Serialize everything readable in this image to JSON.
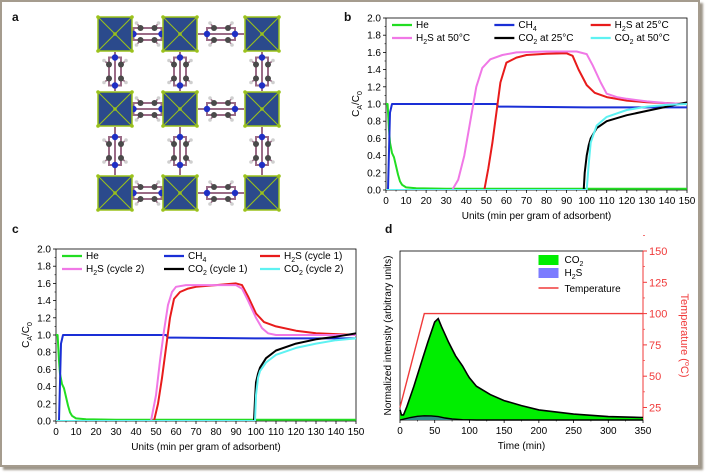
{
  "panel_letters": {
    "a": "a",
    "b": "b",
    "c": "c",
    "d": "d"
  },
  "panel_a": {
    "description": "Crystal structure: metal octahedra (blue with yellow-green vertices) linked by pyrazine rings in a square grid",
    "colors": {
      "octahedron": "#2b4a8c",
      "vertex": "#9bc21a",
      "nitrogen": "#1f2fc4",
      "carbon": "#4a4a4a",
      "hydrogen": "#cfcfcf",
      "bond": "#9a6b86"
    }
  },
  "chart_data": [
    {
      "id": "b",
      "type": "line",
      "xlabel": "Units (min per gram of adsorbent)",
      "ylabel": "CA/C0",
      "ylabel_main": "C",
      "ylabel_sub1": "A",
      "ylabel_mid": "/C",
      "ylabel_sub2": "0",
      "xlim": [
        0,
        150
      ],
      "ylim": [
        0,
        2.0
      ],
      "xticks": [
        "0",
        "10",
        "20",
        "30",
        "40",
        "50",
        "60",
        "70",
        "80",
        "90",
        "100",
        "110",
        "120",
        "130",
        "140",
        "150"
      ],
      "yticks": [
        "0.0",
        "0.2",
        "0.4",
        "0.6",
        "0.8",
        "1.0",
        "1.2",
        "1.4",
        "1.6",
        "1.8",
        "2.0"
      ],
      "legend": "top",
      "series": [
        {
          "name": "He",
          "label_main": "He",
          "label_sub": "",
          "label_rest": "",
          "color": "#22dd22",
          "x": [
            0,
            0.8,
            1.5,
            2,
            3,
            4,
            5,
            6,
            7,
            8,
            10,
            15,
            30,
            60,
            100,
            150
          ],
          "y": [
            1.0,
            1.0,
            0.7,
            0.55,
            0.43,
            0.38,
            0.28,
            0.18,
            0.1,
            0.06,
            0.03,
            0.02,
            0.015,
            0.015,
            0.015,
            0.015
          ]
        },
        {
          "name": "CH4",
          "label_main": "CH",
          "label_sub": "4",
          "label_rest": "",
          "color": "#1a2fd6",
          "x": [
            0,
            1,
            2,
            3,
            4,
            10,
            30,
            55,
            56,
            60,
            100,
            150
          ],
          "y": [
            0,
            0,
            0.9,
            1.0,
            1.0,
            1.0,
            1.0,
            1.0,
            0.97,
            0.97,
            0.96,
            0.96
          ]
        },
        {
          "name": "H2S at 25°C",
          "label_main": "H",
          "label_sub": "2",
          "label_rest": "S at 25°C",
          "color": "#e81b1b",
          "x": [
            0,
            49,
            51,
            53,
            55,
            57,
            60,
            65,
            70,
            80,
            90,
            93,
            96,
            100,
            104,
            110,
            120,
            130,
            140,
            150
          ],
          "y": [
            0,
            0,
            0.25,
            0.55,
            0.9,
            1.25,
            1.48,
            1.54,
            1.57,
            1.585,
            1.59,
            1.56,
            1.4,
            1.22,
            1.13,
            1.08,
            1.04,
            1.02,
            1.01,
            1.0
          ]
        },
        {
          "name": "H2S at 50°C",
          "label_main": "H",
          "label_sub": "2",
          "label_rest": "S at 50°C",
          "color": "#f078e6",
          "x": [
            0,
            33,
            36,
            39,
            42,
            45,
            48,
            52,
            58,
            65,
            80,
            95,
            100,
            103,
            107,
            110,
            115,
            120,
            130,
            140,
            150
          ],
          "y": [
            0,
            0,
            0.12,
            0.4,
            0.8,
            1.2,
            1.42,
            1.52,
            1.57,
            1.6,
            1.61,
            1.61,
            1.58,
            1.45,
            1.25,
            1.12,
            1.08,
            1.06,
            1.03,
            1.01,
            1.0
          ]
        },
        {
          "name": "CO2 at 25°C",
          "label_main": "CO",
          "label_sub": "2",
          "label_rest": " at 25°C",
          "color": "#000000",
          "x": [
            0,
            98.5,
            99,
            100,
            101,
            102,
            105,
            110,
            120,
            130,
            140,
            150
          ],
          "y": [
            0,
            0,
            0.2,
            0.4,
            0.52,
            0.6,
            0.72,
            0.8,
            0.87,
            0.92,
            0.97,
            1.02
          ]
        },
        {
          "name": "CO2 at 50°C",
          "label_main": "CO",
          "label_sub": "2",
          "label_rest": " at 50°C",
          "color": "#5ef2f2",
          "x": [
            0,
            100,
            101,
            102,
            103,
            105,
            110,
            120,
            130,
            140,
            150
          ],
          "y": [
            0,
            0,
            0.3,
            0.55,
            0.62,
            0.75,
            0.85,
            0.93,
            0.97,
            0.99,
            1.0
          ]
        }
      ]
    },
    {
      "id": "c",
      "type": "line",
      "xlabel": "Units (min per gram of adsorbent)",
      "ylabel": "CA/C0",
      "ylabel_main": "C",
      "ylabel_sub1": "A",
      "ylabel_mid": "/C",
      "ylabel_sub2": "0",
      "xlim": [
        0,
        150
      ],
      "ylim": [
        0,
        2.0
      ],
      "xticks": [
        "0",
        "10",
        "20",
        "30",
        "40",
        "50",
        "60",
        "70",
        "80",
        "90",
        "100",
        "110",
        "120",
        "130",
        "140",
        "150"
      ],
      "yticks": [
        "0.0",
        "0.2",
        "0.4",
        "0.6",
        "0.8",
        "1.0",
        "1.2",
        "1.4",
        "1.6",
        "1.8",
        "2.0"
      ],
      "legend": "top",
      "series": [
        {
          "name": "He",
          "label_main": "He",
          "label_sub": "",
          "label_rest": "",
          "color": "#22dd22",
          "x": [
            0,
            0.8,
            1.5,
            2,
            3,
            4,
            5,
            6,
            7,
            8,
            10,
            15,
            30,
            60,
            100,
            150
          ],
          "y": [
            1.0,
            1.0,
            0.7,
            0.55,
            0.43,
            0.38,
            0.28,
            0.18,
            0.1,
            0.06,
            0.03,
            0.02,
            0.015,
            0.015,
            0.015,
            0.015
          ]
        },
        {
          "name": "CH4",
          "label_main": "CH",
          "label_sub": "4",
          "label_rest": "",
          "color": "#1a2fd6",
          "x": [
            0,
            1.5,
            2.5,
            3.5,
            10,
            30,
            55,
            56,
            60,
            100,
            150
          ],
          "y": [
            0,
            0,
            0.9,
            1.0,
            1.0,
            1.0,
            1.0,
            0.97,
            0.97,
            0.96,
            0.96
          ]
        },
        {
          "name": "H2S (cycle 1)",
          "label_main": "H",
          "label_sub": "2",
          "label_rest": "S (cycle 1)",
          "color": "#e81b1b",
          "x": [
            0,
            49,
            51,
            53,
            55,
            57,
            59,
            62,
            66,
            70,
            80,
            90,
            93,
            96,
            100,
            104,
            110,
            120,
            130,
            140,
            150
          ],
          "y": [
            0,
            0,
            0.2,
            0.5,
            0.85,
            1.2,
            1.42,
            1.5,
            1.54,
            1.56,
            1.58,
            1.6,
            1.58,
            1.45,
            1.25,
            1.15,
            1.1,
            1.05,
            1.02,
            1.01,
            1.0
          ]
        },
        {
          "name": "H2S (cycle 2)",
          "label_main": "H",
          "label_sub": "2",
          "label_rest": "S (cycle 2)",
          "color": "#f078e6",
          "x": [
            0,
            47.5,
            50,
            52,
            54,
            56,
            58,
            60,
            65,
            80,
            90,
            93,
            96,
            100,
            103,
            106,
            110,
            120,
            130,
            140,
            150
          ],
          "y": [
            0,
            0,
            0.3,
            0.7,
            1.05,
            1.35,
            1.5,
            1.56,
            1.58,
            1.58,
            1.58,
            1.54,
            1.4,
            1.2,
            1.08,
            1.02,
            1.0,
            1.0,
            1.0,
            1.0,
            1.0
          ]
        },
        {
          "name": "CO2 (cycle 1)",
          "label_main": "CO",
          "label_sub": "2",
          "label_rest": " (cycle 1)",
          "color": "#000000",
          "x": [
            0,
            99,
            99.5,
            100,
            101,
            102,
            105,
            110,
            120,
            130,
            140,
            150
          ],
          "y": [
            0,
            0,
            0.25,
            0.45,
            0.55,
            0.62,
            0.73,
            0.82,
            0.9,
            0.95,
            0.98,
            1.02
          ]
        },
        {
          "name": "CO2 (cycle 2)",
          "label_main": "CO",
          "label_sub": "2",
          "label_rest": " (cycle 2)",
          "color": "#5ef2f2",
          "x": [
            0,
            99.5,
            100,
            101,
            102,
            105,
            110,
            120,
            130,
            140,
            150
          ],
          "y": [
            0,
            0,
            0.3,
            0.5,
            0.58,
            0.68,
            0.77,
            0.85,
            0.9,
            0.94,
            0.96
          ]
        }
      ]
    },
    {
      "id": "d",
      "type": "area",
      "xlabel": "Time (min)",
      "ylabel": "Normalized intensity (arbitrary units)",
      "y2label": "Temperature (°C)",
      "y2label_parts": [
        "Temperature (",
        "o",
        "C)"
      ],
      "xlim": [
        0,
        350
      ],
      "ylim": [
        0,
        1
      ],
      "y2lim": [
        15,
        150
      ],
      "xticks": [
        "0",
        "50",
        "100",
        "150",
        "200",
        "250",
        "300",
        "350"
      ],
      "y2ticks": [
        "25",
        "50",
        "75",
        "100",
        "125",
        "150"
      ],
      "legend": "top-right",
      "series": [
        {
          "name": "CO2",
          "label_main": "CO",
          "label_sub": "2",
          "color": "#00ee00",
          "kind": "area",
          "x": [
            0,
            2,
            5,
            10,
            20,
            30,
            40,
            50,
            55,
            60,
            70,
            80,
            90,
            97,
            100,
            110,
            130,
            150,
            175,
            200,
            250,
            300,
            350
          ],
          "y": [
            0.06,
            0.03,
            0.03,
            0.08,
            0.2,
            0.33,
            0.46,
            0.58,
            0.6,
            0.55,
            0.46,
            0.38,
            0.32,
            0.27,
            0.25,
            0.2,
            0.15,
            0.115,
            0.085,
            0.06,
            0.035,
            0.02,
            0.015
          ]
        },
        {
          "name": "H2S",
          "label_main": "H",
          "label_sub": "2",
          "label_rest": "S",
          "color": "#7b7bff",
          "kind": "area",
          "x": [
            0,
            5,
            15,
            25,
            35,
            45,
            55,
            65,
            75,
            90,
            110,
            150,
            200,
            350
          ],
          "y": [
            0.0,
            0.005,
            0.015,
            0.022,
            0.025,
            0.024,
            0.02,
            0.012,
            0.006,
            0.002,
            0.0,
            0.0,
            0.0,
            0.0
          ]
        },
        {
          "name": "Temperature",
          "label_main": "Temperature",
          "color": "#f03a3a",
          "kind": "line",
          "axis": "y2",
          "x": [
            0,
            35,
            350
          ],
          "y": [
            25,
            100,
            100
          ]
        }
      ]
    }
  ]
}
